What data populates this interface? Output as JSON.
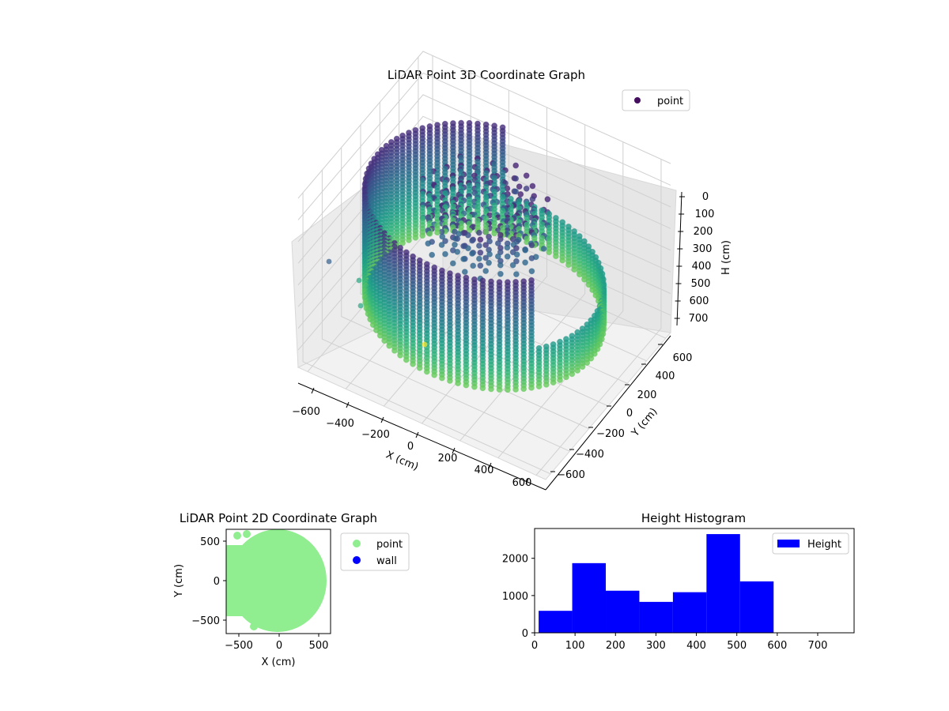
{
  "chart_data": [
    {
      "type": "scatter",
      "dimensions": "3d",
      "title": "LiDAR Point 3D Coordinate Graph",
      "xlabel": "X (cm)",
      "ylabel": "Y (cm)",
      "zlabel": "H (cm)",
      "xlim": [
        -650,
        650
      ],
      "ylim": [
        -650,
        650
      ],
      "zlim": [
        0,
        780
      ],
      "z_inverted": true,
      "xticks": [
        "−600",
        "−400",
        "−200",
        "0",
        "200",
        "400",
        "600"
      ],
      "yticks": [
        "−600",
        "−400",
        "−200",
        "0",
        "200",
        "400",
        "600"
      ],
      "zticks": [
        "0",
        "100",
        "200",
        "300",
        "400",
        "500",
        "600",
        "700"
      ],
      "colormap": "viridis",
      "legend": [
        {
          "label": "point",
          "color": "#440f5e"
        }
      ],
      "legend_position": "top-right",
      "description": "ring-shaped wall of points around sensor, radius about 600 cm, heights 0-600 cm"
    },
    {
      "type": "scatter",
      "title": "LiDAR Point 2D Coordinate Graph",
      "xlabel": "X (cm)",
      "ylabel": "Y (cm)",
      "xlim": [
        -650,
        650
      ],
      "ylim": [
        -650,
        650
      ],
      "xticks": [
        "−500",
        "0",
        "500"
      ],
      "yticks": [
        "−500",
        "0",
        "500"
      ],
      "series": [
        {
          "name": "point",
          "color": "#90ee90"
        },
        {
          "name": "wall",
          "color": "#0000ff"
        }
      ],
      "legend_position": "outside-right",
      "point_region": "filled disk of radius about 610 cm centered near origin"
    },
    {
      "type": "bar",
      "subtype": "histogram",
      "title": "Height Histogram",
      "bins": [
        {
          "from": 10,
          "to": 93,
          "count": 590
        },
        {
          "from": 93,
          "to": 176,
          "count": 1870
        },
        {
          "from": 176,
          "to": 259,
          "count": 1130
        },
        {
          "from": 259,
          "to": 342,
          "count": 830
        },
        {
          "from": 342,
          "to": 425,
          "count": 1090
        },
        {
          "from": 425,
          "to": 508,
          "count": 2650
        },
        {
          "from": 508,
          "to": 591,
          "count": 1380
        }
      ],
      "xlim": [
        0,
        790
      ],
      "ylim": [
        0,
        2800
      ],
      "xticks": [
        0,
        100,
        200,
        300,
        400,
        500,
        600,
        700
      ],
      "yticks": [
        0,
        1000,
        2000
      ],
      "series": [
        {
          "name": "Height",
          "color": "#0000ff"
        }
      ],
      "legend_position": "top-right"
    }
  ]
}
